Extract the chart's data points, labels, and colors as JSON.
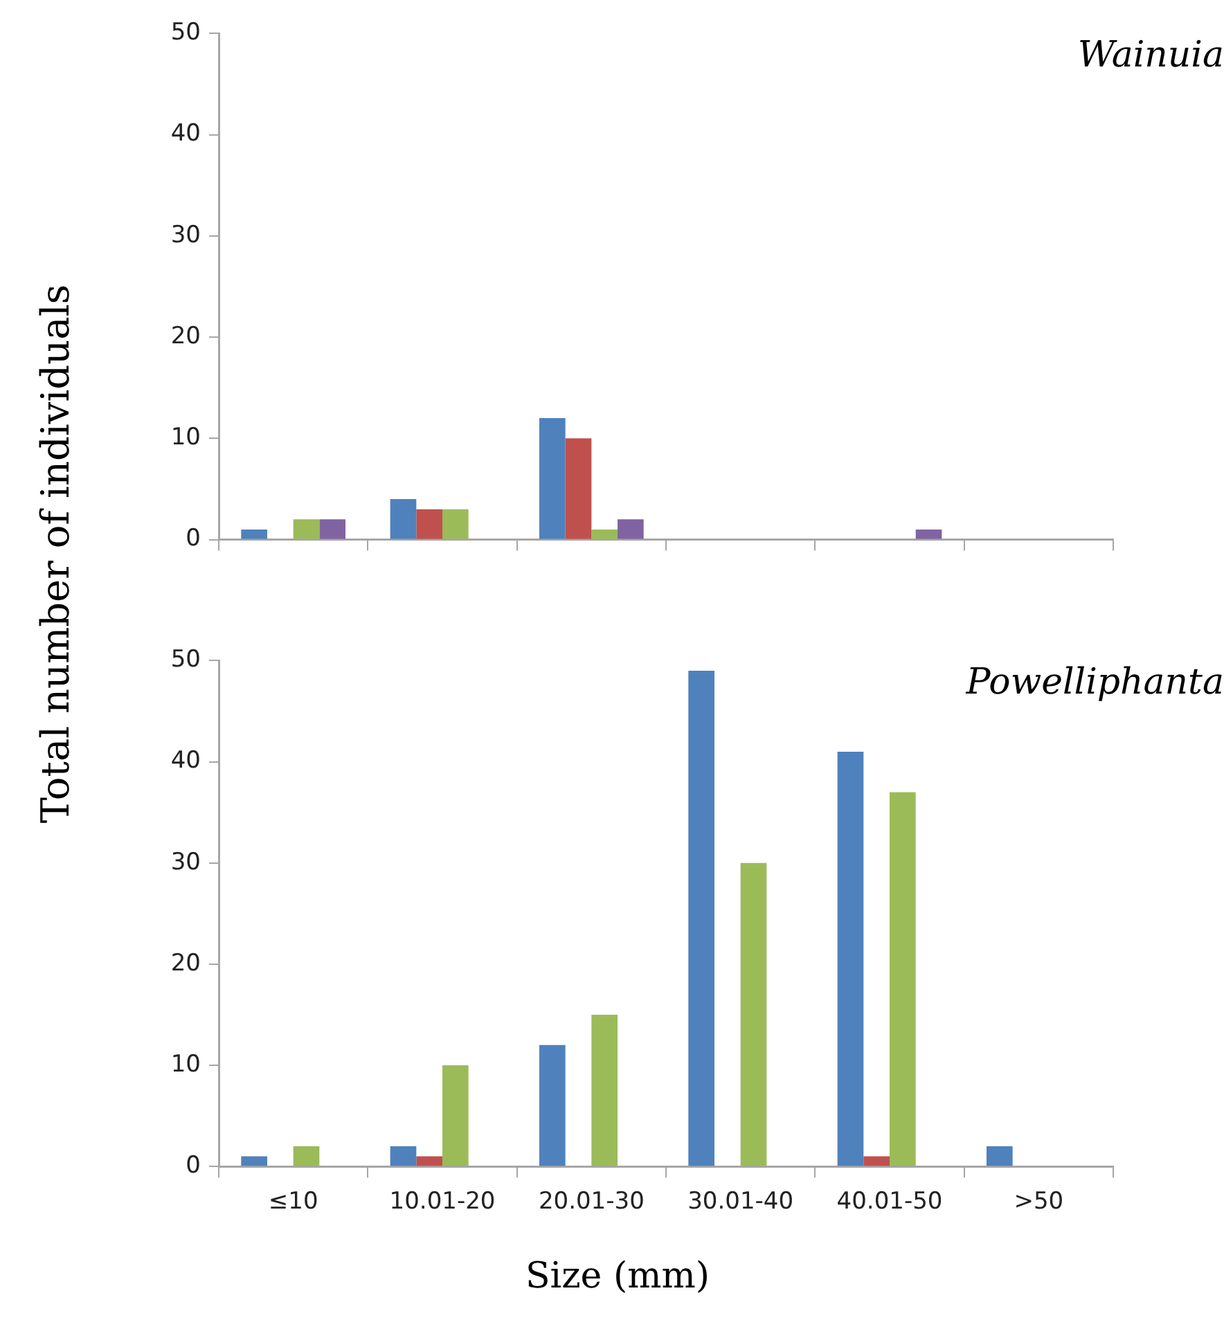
{
  "chart_data": [
    {
      "type": "bar",
      "categories": [
        null,
        null,
        null,
        null,
        null,
        null
      ],
      "ylabel": "Total number of individuals",
      "annotations": [
        "Wainuia"
      ],
      "ylim": [
        0,
        50
      ],
      "yticks": [
        0,
        10,
        20,
        30,
        40,
        50
      ],
      "grid": false,
      "legend": false,
      "tick_labels": "y",
      "series": [
        {
          "color": "#4f81bd",
          "values": [
            1,
            4,
            12,
            0,
            0,
            0
          ]
        },
        {
          "color": "#c0504d",
          "values": [
            0,
            3,
            10,
            0,
            0,
            0
          ]
        },
        {
          "color": "#9bbb59",
          "values": [
            2,
            3,
            1,
            0,
            0,
            0
          ]
        },
        {
          "color": "#8064a2",
          "values": [
            2,
            0,
            2,
            0,
            1,
            0
          ]
        }
      ]
    },
    {
      "type": "bar",
      "categories": [
        "≤10",
        "10.01-20",
        "20.01-30",
        "30.01-40",
        "40.01-50",
        ">50"
      ],
      "xlabel": "Size (mm)",
      "annotations": [
        "Powelliphanta"
      ],
      "ylim": [
        0,
        50
      ],
      "yticks": [
        0,
        10,
        20,
        30,
        40,
        50
      ],
      "grid": false,
      "legend": false,
      "series": [
        {
          "color": "#4f81bd",
          "values": [
            1,
            2,
            12,
            49,
            41,
            2
          ]
        },
        {
          "color": "#c0504d",
          "values": [
            0,
            1,
            0,
            0,
            1,
            0
          ]
        },
        {
          "color": "#9bbb59",
          "values": [
            2,
            10,
            15,
            30,
            37,
            0
          ]
        },
        {
          "color": "#8064a2",
          "values": [
            null,
            null,
            null,
            null,
            null,
            null
          ]
        }
      ]
    }
  ]
}
